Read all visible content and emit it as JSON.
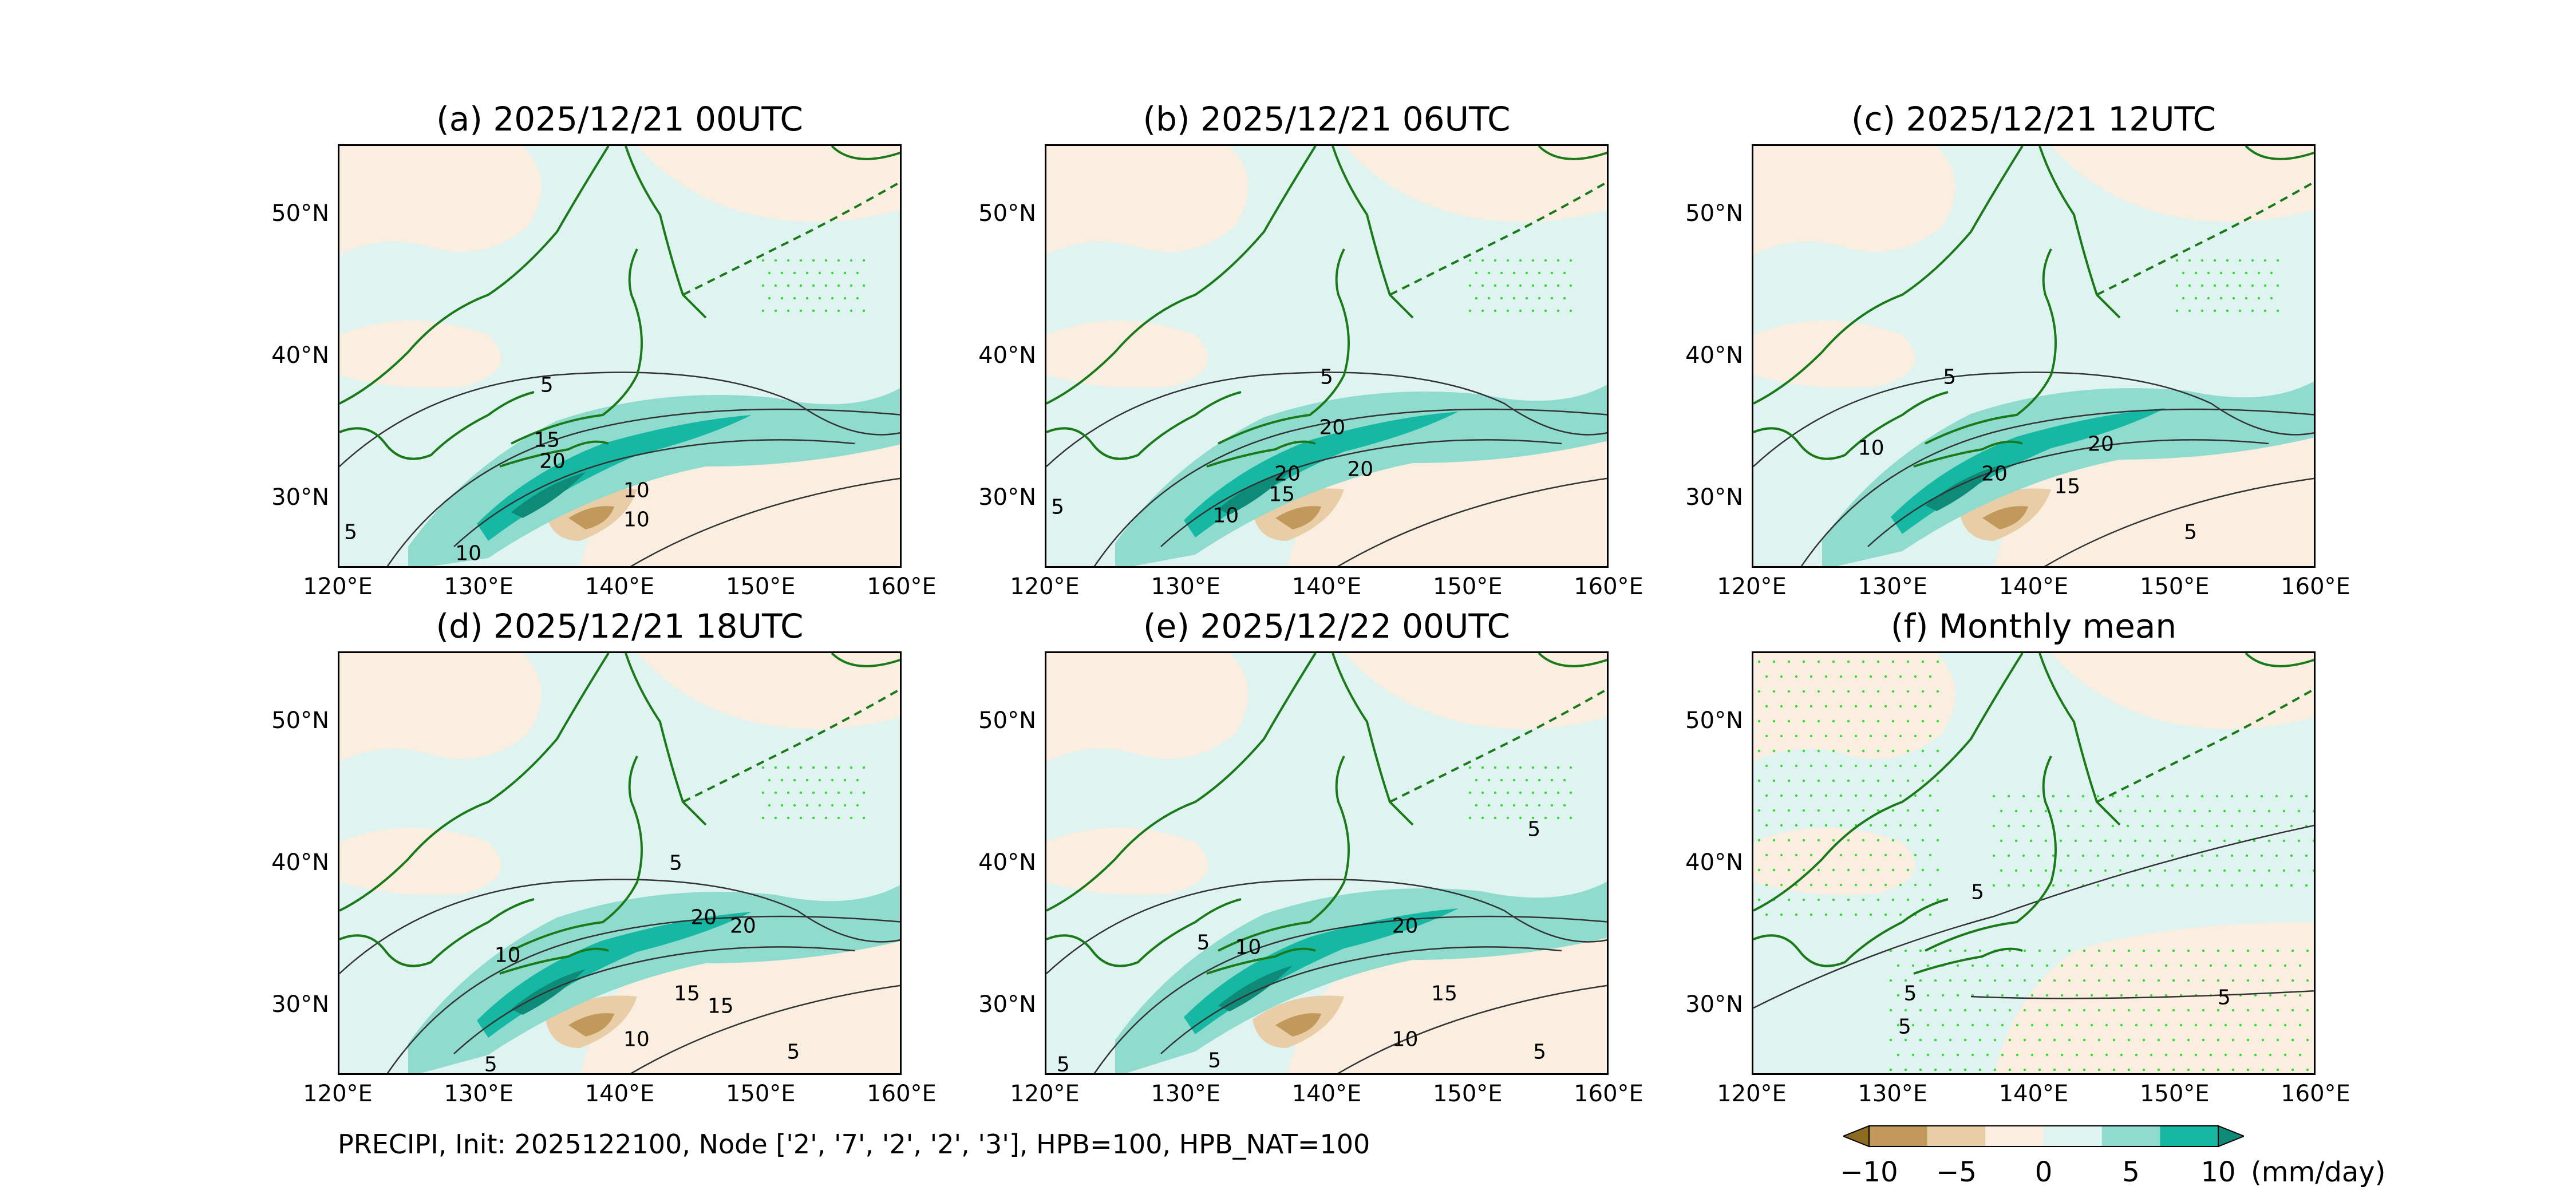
{
  "footer": "PRECIPI, Init: 2025122100, Node ['2', '7', '2', '2', '3'], HPB=100, HPB_NAT=100",
  "lon_ticks": [
    "120°E",
    "130°E",
    "140°E",
    "150°E",
    "160°E"
  ],
  "lat_ticks": [
    "50°N",
    "40°N",
    "30°N"
  ],
  "colors": {
    "land_line": "#1a7a1a",
    "stipple": "#33dd33",
    "contour": "#333333"
  },
  "panels": [
    {
      "title": "(a) 2025/12/21 00UTC",
      "contour_labels": [
        "5",
        "10",
        "15",
        "20",
        "10",
        "10",
        "5"
      ]
    },
    {
      "title": "(b) 2025/12/21 06UTC",
      "contour_labels": [
        "5",
        "20",
        "20",
        "20",
        "15",
        "10",
        "5"
      ]
    },
    {
      "title": "(c) 2025/12/21 12UTC",
      "contour_labels": [
        "5",
        "10",
        "20",
        "20",
        "15",
        "5"
      ]
    },
    {
      "title": "(d) 2025/12/21 18UTC",
      "contour_labels": [
        "5",
        "20",
        "20",
        "10",
        "15",
        "15",
        "10",
        "5",
        "5"
      ]
    },
    {
      "title": "(e) 2025/12/22 00UTC",
      "contour_labels": [
        "5",
        "5",
        "10",
        "20",
        "15",
        "10",
        "5",
        "5",
        "5"
      ]
    },
    {
      "title": "(f) Monthly mean",
      "contour_labels": [
        "5",
        "5",
        "5",
        "5"
      ]
    }
  ],
  "colorbar": {
    "unit": "(mm/day)",
    "tick_labels": [
      "−10",
      "−5",
      "0",
      "5",
      "10"
    ],
    "colors": [
      "#8c6a1f",
      "#c19a5b",
      "#e8cda6",
      "#faeee0",
      "#dff4f0",
      "#8fdccf",
      "#16b8a4",
      "#0d8a78"
    ]
  }
}
